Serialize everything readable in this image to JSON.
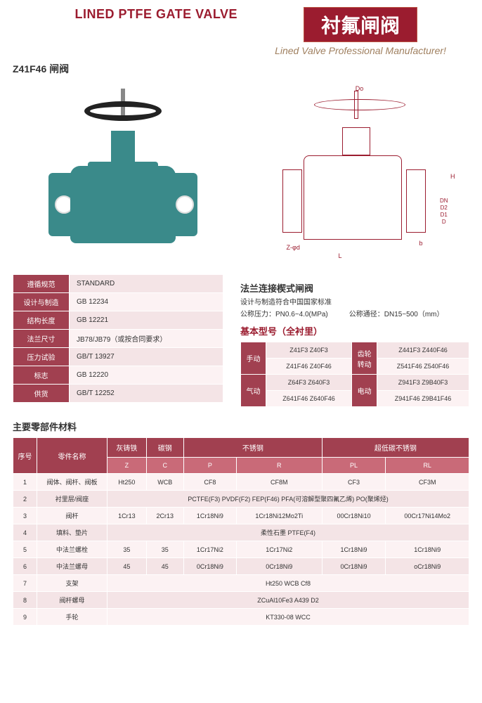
{
  "header": {
    "title_en": "LINED PTFE GATE VALVE",
    "title_cn": "衬氟闸阀",
    "subtitle": "Lined Valve Professional Manufacturer!"
  },
  "model_label": "Z41F46 闸阀",
  "drawing_dims": {
    "Do": "Do",
    "H": "H",
    "L": "L",
    "D": "DN\nD2\nD1\nD",
    "Z": "Z-φd",
    "b": "b"
  },
  "spec_table": [
    [
      "遵循规范",
      "STANDARD"
    ],
    [
      "设计与制造",
      "GB 12234"
    ],
    [
      "结构长度",
      "GB 12221"
    ],
    [
      "法兰尺寸",
      "JB78/JB79（或按合同要求）"
    ],
    [
      "压力试验",
      "GB/T 13927"
    ],
    [
      "标志",
      "GB 12220"
    ],
    [
      "供货",
      "GB/T 12252"
    ]
  ],
  "flange_section": {
    "title": "法兰连接楔式闸阀",
    "sub": "设计与制造符合中国国家标准",
    "pressure": "公称压力：PN0.6~4.0(MPa)",
    "dn": "公称通径：DN15~500（mm）"
  },
  "model_section_title": "基本型号（全衬里）",
  "model_table": {
    "r1h1": "手动",
    "r1c1": "Z41F3  Z40F3",
    "r1h2": "齿轮转动",
    "r1c2": "Z441F3  Z440F46",
    "r2c1": "Z41F46  Z40F46",
    "r2c2": "Z541F46  Z540F46",
    "r3h1": "气动",
    "r3c1": "Z64F3  Z640F3",
    "r3h2": "电动",
    "r3c2": "Z941F3  Z9B40F3",
    "r4c1": "Z641F46  Z640F46",
    "r4c2": "Z941F46  Z9B41F46"
  },
  "materials_title": "主要零部件材料",
  "mat_headers": {
    "no": "序号",
    "name": "零件名称",
    "g1": "灰铸铁",
    "g2": "碳钢",
    "g3": "不锈钢",
    "g4": "超低碳不锈钢",
    "Z": "Z",
    "C": "C",
    "P": "P",
    "R": "R",
    "PL": "PL",
    "RL": "RL"
  },
  "mat_rows": [
    {
      "n": "1",
      "name": "阀体、阀杆、阀板",
      "c": [
        "Ht250",
        "WCB",
        "CF8",
        "CF8M",
        "CF3",
        "CF3M"
      ]
    },
    {
      "n": "2",
      "name": "衬里层/阀座",
      "span": "PCTFE(F3)  PVDF(F2)  FEP(F46)  PFA(可溶解型聚四氟乙烯)  PO(聚烯烃)"
    },
    {
      "n": "3",
      "name": "阀杆",
      "c": [
        "1Cr13",
        "2Cr13",
        "1Cr18Ni9",
        "1Cr18Ni12Mo2Ti",
        "00Cr18Ni10",
        "00Cr17Ni14Mo2"
      ]
    },
    {
      "n": "4",
      "name": "填料、垫片",
      "span": "柔性石墨  PTFE(F4)"
    },
    {
      "n": "5",
      "name": "中法兰螺栓",
      "c": [
        "35",
        "35",
        "1Cr17Ni2",
        "1Cr17Ni2",
        "1Cr18Ni9",
        "1Cr18Ni9"
      ]
    },
    {
      "n": "6",
      "name": "中法兰螺母",
      "c": [
        "45",
        "45",
        "0Cr18Ni9",
        "0Cr18Ni9",
        "0Cr18Ni9",
        "oCr18Ni9"
      ]
    },
    {
      "n": "7",
      "name": "支架",
      "span": "Ht250  WCB  Cf8"
    },
    {
      "n": "8",
      "name": "阀杆螺母",
      "span": "ZCuAl10Fe3    A439 D2"
    },
    {
      "n": "9",
      "name": "手轮",
      "span": "KT330-08 WCC"
    }
  ]
}
